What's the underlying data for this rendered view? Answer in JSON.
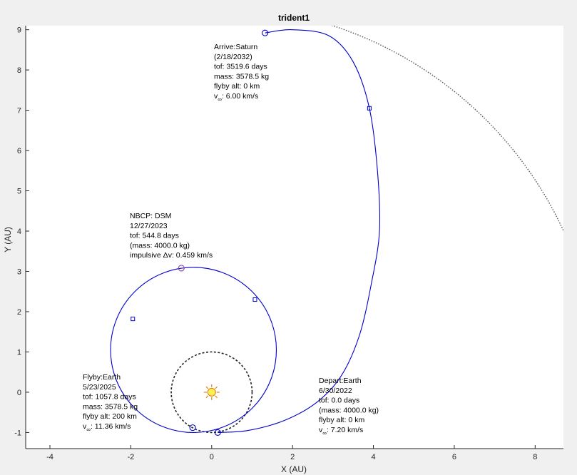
{
  "chart_data": {
    "type": "line",
    "title": "trident1",
    "xlabel": "X (AU)",
    "ylabel": "Y (AU)",
    "xlim": [
      -4.6,
      8.7
    ],
    "ylim": [
      -1.4,
      9.1
    ],
    "xticks": [
      -4,
      -2,
      0,
      2,
      4,
      6,
      8
    ],
    "yticks": [
      -1,
      0,
      1,
      2,
      3,
      4,
      5,
      6,
      7,
      8,
      9
    ],
    "grid": false,
    "colors": {
      "trajectory": "#0000cc",
      "planet_orbit": "#333333",
      "sun_fill": "#ffee55",
      "sun_stroke": "#dd7700",
      "axis": "#262626"
    },
    "sun": {
      "x": 0,
      "y": 0
    },
    "orbits": [
      {
        "name": "Earth",
        "radius": 1.0
      },
      {
        "name": "Saturn",
        "radius": 9.58,
        "theta_deg": [
          20,
          82
        ]
      }
    ],
    "trajectory": {
      "first_arc": {
        "center_x": -0.45,
        "center_y": 1.05,
        "semi_x": 2.05,
        "semi_y": 2.05
      },
      "second_arc": [
        {
          "x": 0.15,
          "y": -1.0
        },
        {
          "x": 0.9,
          "y": -0.95
        },
        {
          "x": 1.8,
          "y": -0.7
        },
        {
          "x": 2.6,
          "y": -0.25
        },
        {
          "x": 3.2,
          "y": 0.4
        },
        {
          "x": 3.65,
          "y": 1.4
        },
        {
          "x": 3.95,
          "y": 2.7
        },
        {
          "x": 4.15,
          "y": 4.0
        },
        {
          "x": 4.1,
          "y": 5.5
        },
        {
          "x": 3.9,
          "y": 7.05
        },
        {
          "x": 3.5,
          "y": 8.2
        },
        {
          "x": 2.9,
          "y": 8.85
        },
        {
          "x": 2.0,
          "y": 9.0
        },
        {
          "x": 1.32,
          "y": 8.92
        }
      ]
    },
    "events": [
      {
        "name": "Depart:Earth",
        "x": 0.15,
        "y": -1.0,
        "lines": [
          "Depart:Earth",
          "6/30/2022",
          "tof: 0.0 days",
          "(mass: 4000.0 kg)",
          "flyby alt: 0 km"
        ],
        "vinf": "v",
        "vinf_sub": "∞",
        "vinf_val": ": 7.20 km/s"
      },
      {
        "name": "NBCP: DSM",
        "x": -0.75,
        "y": 3.08,
        "lines": [
          "NBCP:  DSM",
          "12/27/2023",
          "tof: 544.8 days",
          "(mass: 4000.0 kg)",
          "impulsive Δv: 0.459 km/s"
        ]
      },
      {
        "name": "Flyby:Earth",
        "x": -0.47,
        "y": -0.88,
        "lines": [
          "Flyby:Earth",
          "5/23/2025",
          "tof: 1057.8 days",
          "mass: 3578.5 kg",
          "flyby alt: 200 km"
        ],
        "vinf": "v",
        "vinf_sub": "∞",
        "vinf_val": ": 11.36 km/s"
      },
      {
        "name": "Arrive:Saturn",
        "x": 1.32,
        "y": 8.92,
        "lines": [
          "Arrive:Saturn",
          "(2/18/2032)",
          "tof: 3519.6 days",
          "mass: 3578.5 kg",
          "flyby alt: 0 km"
        ],
        "vinf": "v",
        "vinf_sub": "∞",
        "vinf_val": ": 6.00 km/s"
      }
    ],
    "square_markers": [
      {
        "x": -1.95,
        "y": 1.82
      },
      {
        "x": 1.07,
        "y": 2.3
      },
      {
        "x": 3.9,
        "y": 7.05
      }
    ]
  }
}
